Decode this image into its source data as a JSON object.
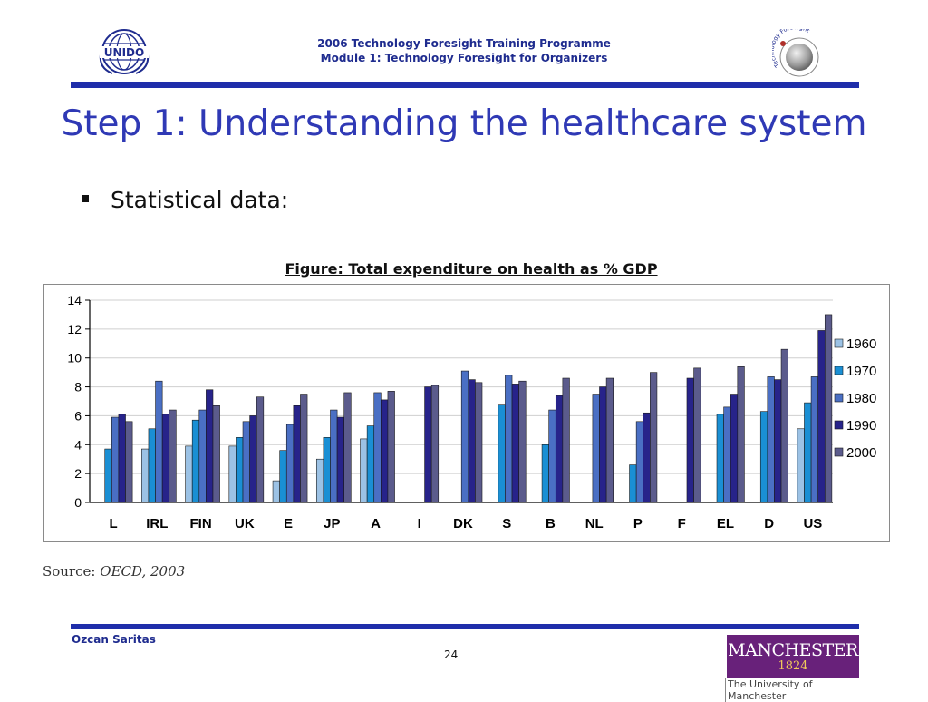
{
  "header": {
    "line1": "2006 Technology Foresight Training Programme",
    "line2": "Module 1: Technology Foresight for Organizers",
    "left_logo": "UNIDO",
    "right_logo_text": "Technology ForeSight"
  },
  "slide": {
    "title": "Step 1: Understanding the healthcare system",
    "bullet": "Statistical data:",
    "figure_caption": "Figure: Total expenditure on health as % GDP"
  },
  "source": {
    "label": "Source:",
    "value": "OECD, 2003"
  },
  "footer": {
    "author": "Ozcan Saritas",
    "page": "24",
    "university_name": "MANCHESTER",
    "university_year": "1824",
    "university_sub": "The University of Manchester"
  },
  "colors": {
    "header_blue": "#1f2c8f",
    "rule_blue": "#1f2eaa",
    "title_blue": "#2f39b5",
    "manchester_purple": "#68217a"
  },
  "chart_data": {
    "type": "bar",
    "title": "",
    "xlabel": "",
    "ylabel": "",
    "ylim": [
      0,
      14
    ],
    "yticks": [
      "0",
      "2",
      "4",
      "6",
      "8",
      "10",
      "12",
      "14"
    ],
    "grid": true,
    "legend_position": "right",
    "categories": [
      "L",
      "IRL",
      "FIN",
      "UK",
      "E",
      "JP",
      "A",
      "I",
      "DK",
      "S",
      "B",
      "NL",
      "P",
      "F",
      "EL",
      "D",
      "US"
    ],
    "series": [
      {
        "name": "1960",
        "color": "#9cc2e5",
        "values": [
          null,
          3.7,
          3.9,
          3.9,
          1.5,
          3.0,
          4.4,
          null,
          null,
          null,
          null,
          null,
          null,
          null,
          null,
          null,
          5.1
        ]
      },
      {
        "name": "1970",
        "color": "#1a8fd4",
        "values": [
          3.7,
          5.1,
          5.7,
          4.5,
          3.6,
          4.5,
          5.3,
          null,
          null,
          6.8,
          4.0,
          null,
          2.6,
          null,
          6.1,
          6.3,
          6.9
        ]
      },
      {
        "name": "1980",
        "color": "#4a6fc4",
        "values": [
          5.9,
          8.4,
          6.4,
          5.6,
          5.4,
          6.4,
          7.6,
          null,
          9.1,
          8.8,
          6.4,
          7.5,
          5.6,
          null,
          6.6,
          8.7,
          8.7
        ]
      },
      {
        "name": "1990",
        "color": "#27238a",
        "values": [
          6.1,
          6.1,
          7.8,
          6.0,
          6.7,
          5.9,
          7.1,
          8.0,
          8.5,
          8.2,
          7.4,
          8.0,
          6.2,
          8.6,
          7.5,
          8.5,
          11.9
        ]
      },
      {
        "name": "2000",
        "color": "#5b5b8c",
        "values": [
          5.6,
          6.4,
          6.7,
          7.3,
          7.5,
          7.6,
          7.7,
          8.1,
          8.3,
          8.4,
          8.6,
          8.6,
          9.0,
          9.3,
          9.4,
          10.6,
          13.0
        ]
      }
    ]
  }
}
